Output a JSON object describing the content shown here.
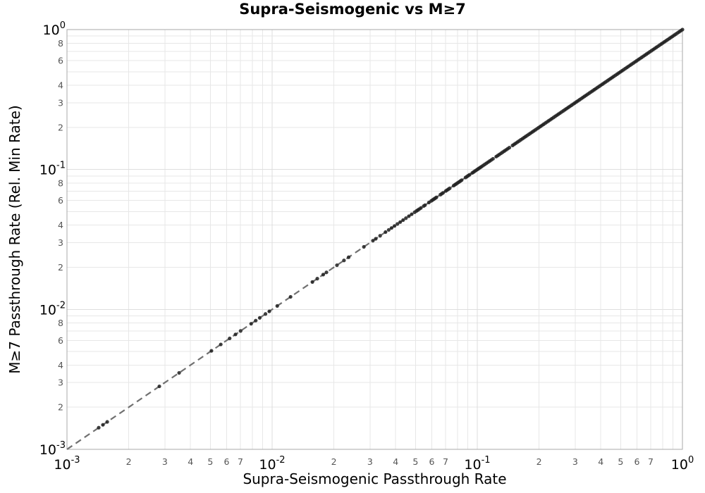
{
  "window": {
    "background": "#ffffff"
  },
  "colors": {
    "grid_minor": "#e7e7e7",
    "grid_major": "#dedede",
    "spine": "#a8a8a8",
    "reference_line": "#707070",
    "marker": "#222222",
    "major_tick_label": "#000000",
    "minor_tick_label": "#555555"
  },
  "chart_data": {
    "type": "scatter",
    "title": "Supra-Seismogenic vs M≥7",
    "xlabel": "Supra-Seismogenic Passthrough Rate",
    "ylabel": "M≥7 Passthrough Rate (Rel. Min Rate)",
    "x_scale": "log",
    "y_scale": "log",
    "xlim": [
      0.001,
      1.0
    ],
    "ylim": [
      0.001,
      1.0
    ],
    "grid": true,
    "legend": "none",
    "x_major_tick_exponents": [
      -3,
      -2,
      -1,
      0
    ],
    "y_major_tick_exponents": [
      0,
      -1,
      -2,
      -3
    ],
    "x_minor_tick_label_multiples": [
      2,
      3,
      4,
      5,
      6,
      7
    ],
    "y_minor_tick_label_multiples": [
      8,
      6,
      4,
      3,
      2
    ],
    "minor_gridline_multiples": [
      2,
      3,
      4,
      5,
      6,
      7,
      8,
      9
    ],
    "reference_line": {
      "name": "one-to-one line (y = x)",
      "style": "dashed",
      "from": [
        0.001,
        0.001
      ],
      "to": [
        1.0,
        1.0
      ]
    },
    "series": [
      {
        "name": "passthrough-rate-points",
        "marker": "circle",
        "radius": 2.6,
        "opacity": 0.87,
        "y_equals_x": true,
        "x": [
          0.001428,
          0.001497,
          0.001571,
          0.00282,
          0.00352,
          0.00506,
          0.00562,
          0.00621,
          0.00663,
          0.00702,
          0.0079,
          0.00832,
          0.0087,
          0.00928,
          0.00969,
          0.01059,
          0.0123,
          0.01571,
          0.0166,
          0.01774,
          0.0184,
          0.0207,
          0.0224,
          0.0236,
          0.028,
          0.031,
          0.032,
          0.0336,
          0.0357,
          0.037,
          0.0382,
          0.0395,
          0.0408,
          0.0421,
          0.0435,
          0.0449,
          0.0464,
          0.0479,
          0.0495,
          0.0505,
          0.0513,
          0.0521,
          0.0531,
          0.0548,
          0.0556,
          0.0581,
          0.0596,
          0.0605,
          0.0614,
          0.0623,
          0.0632,
          0.0661,
          0.0671,
          0.0681,
          0.0702,
          0.0712,
          0.0723,
          0.0734,
          0.0767,
          0.0779,
          0.079,
          0.0802,
          0.0814,
          0.0826,
          0.0839,
          0.0877,
          0.089,
          0.0903,
          0.0917,
          0.0945,
          0.0959,
          0.0973,
          0.0988,
          0.1003,
          0.1018,
          0.1033,
          0.1049,
          0.1068,
          0.1088,
          0.1108,
          0.1129,
          0.115,
          0.1171,
          0.1193,
          0.1237,
          0.126,
          0.1283,
          0.1307,
          0.1331,
          0.1356,
          0.1381,
          0.1407,
          0.1433,
          0.1486,
          0.1514,
          0.1542,
          0.1571,
          0.16,
          0.163,
          0.166,
          0.1691,
          0.1722,
          0.1754,
          0.1786,
          0.1819,
          0.1853,
          0.1887,
          0.1922,
          0.1958,
          0.1994,
          0.2031,
          0.2069,
          0.2107,
          0.2146,
          0.2186,
          0.2226,
          0.2267,
          0.2309,
          0.2352,
          0.2396,
          0.244,
          0.2485,
          0.2531,
          0.2578,
          0.2626,
          0.2675,
          0.2724,
          0.2774,
          0.2825,
          0.2877,
          0.293,
          0.2984,
          0.3039,
          0.3095,
          0.3152,
          0.321,
          0.3269,
          0.3329,
          0.3391,
          0.3454,
          0.3518,
          0.3583,
          0.3649,
          0.3717,
          0.3786,
          0.3856,
          0.3927,
          0.4,
          0.4074,
          0.4149,
          0.4226,
          0.4304,
          0.4384,
          0.4465,
          0.4548,
          0.4632,
          0.4718,
          0.4805,
          0.4894,
          0.4985,
          0.5077,
          0.5171,
          0.5267,
          0.5364,
          0.5463,
          0.5564,
          0.5667,
          0.5772,
          0.5879,
          0.5988,
          0.6099,
          0.6212,
          0.6327,
          0.6444,
          0.6563,
          0.6684,
          0.6808,
          0.6934,
          0.7062,
          0.7193,
          0.7326,
          0.7462,
          0.76,
          0.7741,
          0.7884,
          0.803,
          0.8179,
          0.833,
          0.8484,
          0.8641,
          0.8801,
          0.8964,
          0.913,
          0.9299,
          0.9471,
          0.9646,
          0.9824,
          1.0
        ]
      }
    ]
  }
}
